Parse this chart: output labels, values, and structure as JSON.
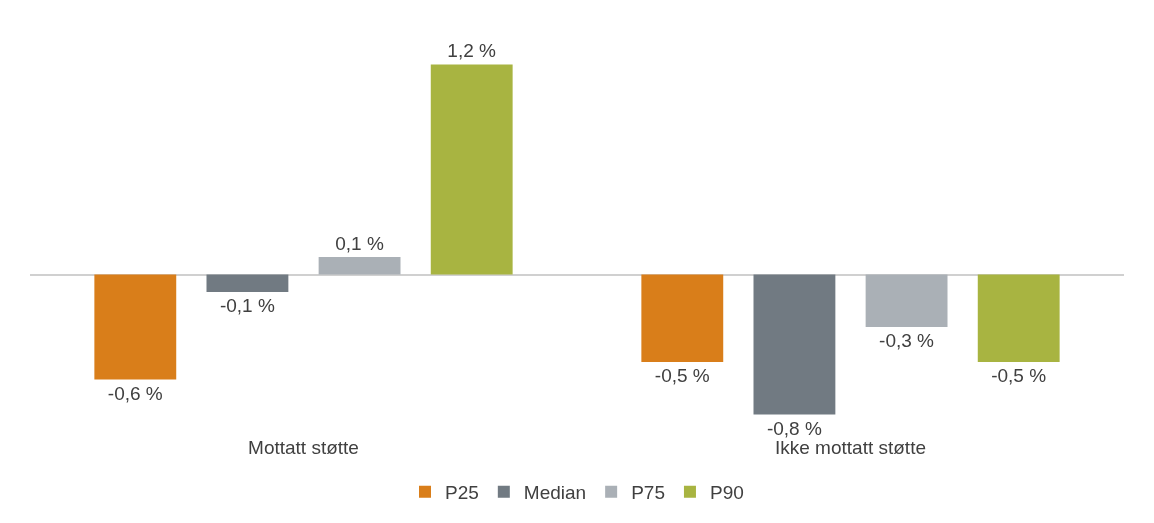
{
  "chart_data": {
    "type": "bar",
    "categories": [
      "Mottatt støtte",
      "Ikke mottatt støtte"
    ],
    "series": [
      {
        "name": "P25",
        "color": "#d97e1a",
        "values": [
          -0.6,
          -0.5
        ],
        "value_labels": [
          "-0,6 %",
          "-0,5 %"
        ]
      },
      {
        "name": "Median",
        "color": "#717a82",
        "values": [
          -0.1,
          -0.8
        ],
        "value_labels": [
          "-0,1 %",
          "-0,8 %"
        ]
      },
      {
        "name": "P75",
        "color": "#aab0b6",
        "values": [
          0.1,
          -0.3
        ],
        "value_labels": [
          "0,1 %",
          "-0,3 %"
        ]
      },
      {
        "name": "P90",
        "color": "#a8b441",
        "values": [
          1.2,
          -0.5
        ],
        "value_labels": [
          "1,2 %",
          "-0,5 %"
        ]
      }
    ],
    "legend": "bottom",
    "tick_labels": "x"
  }
}
